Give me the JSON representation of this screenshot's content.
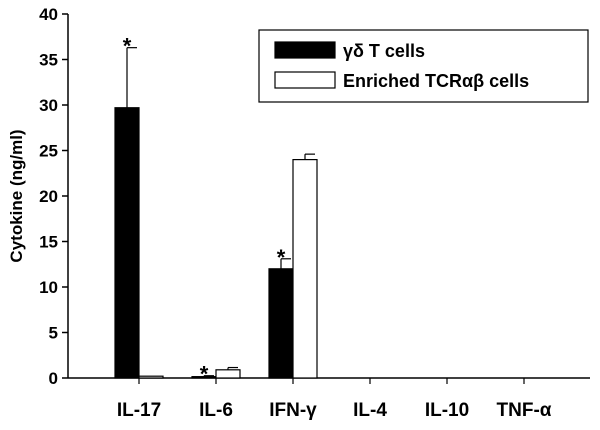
{
  "chart_data": {
    "type": "bar",
    "title": "",
    "xlabel": "",
    "ylabel": "Cytokine (ng/ml)",
    "ylim": [
      0,
      40
    ],
    "yticks": [
      0,
      5,
      10,
      15,
      20,
      25,
      30,
      35,
      40
    ],
    "categories": [
      "IL-17",
      "IL-6",
      "IFN-γ",
      "IL-4",
      "IL-10",
      "TNF-α"
    ],
    "series": [
      {
        "name": "γδ T cells",
        "color": "#000000",
        "values": [
          29.7,
          0.15,
          12.0,
          0,
          0,
          0
        ],
        "errors": [
          6.6,
          0.1,
          1.1,
          0,
          0,
          0
        ]
      },
      {
        "name": "Enriched TCRαβ cells",
        "color": "#ffffff",
        "values": [
          0.2,
          0.9,
          24.0,
          0,
          0,
          0
        ],
        "errors": [
          0,
          0.25,
          0.6,
          0,
          0,
          0
        ]
      }
    ],
    "significance": [
      {
        "category": "IL-17",
        "series": 0,
        "label": "*"
      },
      {
        "category": "IL-6",
        "series": 0,
        "label": "*"
      },
      {
        "category": "IFN-γ",
        "series": 0,
        "label": "*"
      }
    ],
    "legend_position": "top-right",
    "grid": false
  }
}
